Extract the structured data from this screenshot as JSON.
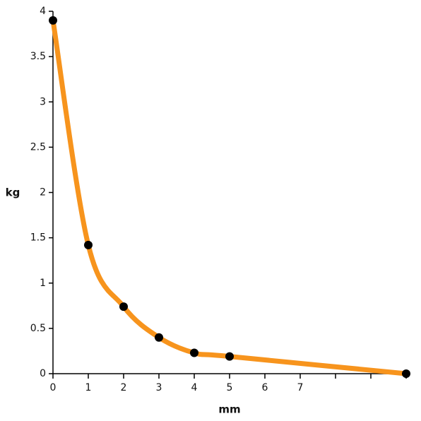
{
  "chart_data": {
    "type": "line",
    "x_label": "mm",
    "y_label": "kg",
    "x": [
      0,
      1,
      2,
      3,
      4,
      5,
      10
    ],
    "series": [
      {
        "color": "#f7941d",
        "values": [
          3.9,
          1.42,
          0.74,
          0.4,
          0.23,
          0.19,
          0
        ]
      }
    ],
    "marker_color": "#000000",
    "xlim": [
      0,
      10
    ],
    "ylim": [
      0,
      4
    ],
    "xticks": [
      0,
      1,
      2,
      3,
      4,
      5,
      6,
      7,
      {
        "value": 8,
        "label": null
      },
      {
        "value": 9,
        "label": null
      },
      {
        "value": 10,
        "label": null
      }
    ],
    "yticks": [
      0,
      0.5,
      1,
      1.5,
      2,
      2.5,
      3,
      3.5,
      4
    ],
    "grid": false
  }
}
